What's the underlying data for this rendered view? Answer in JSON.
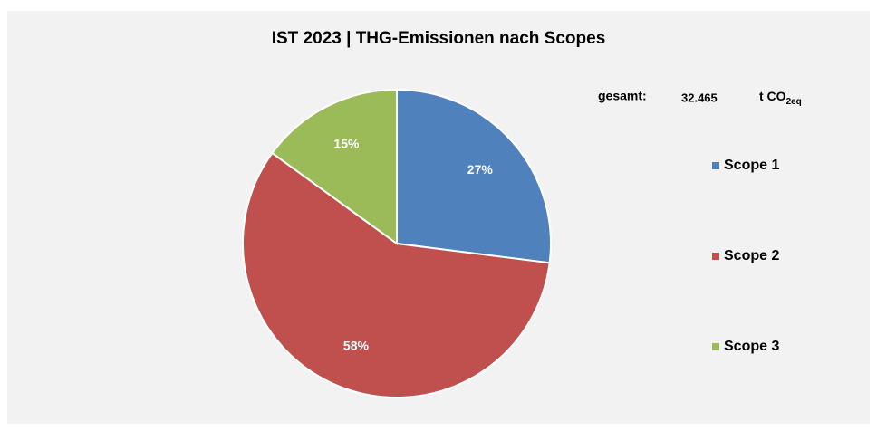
{
  "chart_data": {
    "type": "pie",
    "title": "IST 2023 | THG-Emissionen nach Scopes",
    "categories": [
      "Scope 1",
      "Scope 2",
      "Scope 3"
    ],
    "values": [
      27,
      58,
      15
    ],
    "value_labels": [
      "27%",
      "58%",
      "15%"
    ],
    "colors": [
      "#4f81bd",
      "#c0504d",
      "#9bbb59"
    ],
    "legend": "right",
    "annotation": {
      "label": "gesamt:",
      "total": {
        "value": 32465,
        "label": "32.465"
      },
      "unit": "t CO",
      "unit_sub": "2eq"
    }
  }
}
